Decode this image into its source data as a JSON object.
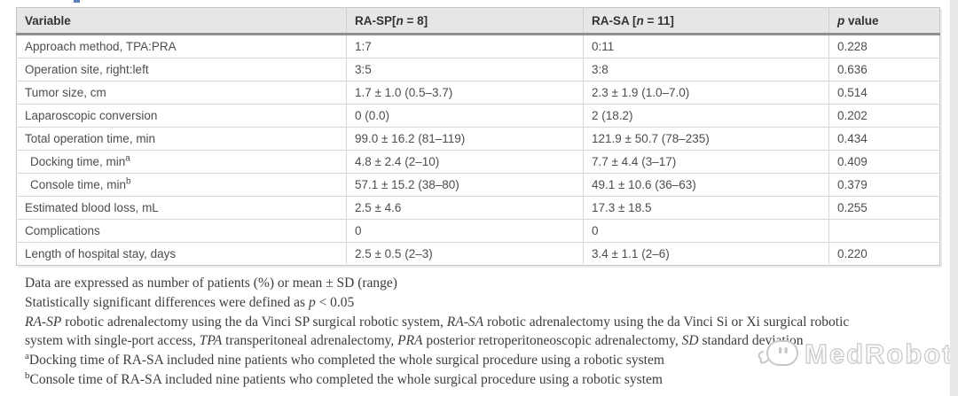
{
  "page": {
    "watermark_label": "MedRobot"
  },
  "table": {
    "header": [
      [
        {
          "t": "Variable"
        }
      ],
      [
        {
          "t": "RA-SP["
        },
        {
          "t": "n",
          "i": true
        },
        {
          "t": " = 8]"
        }
      ],
      [
        {
          "t": "RA-SA ["
        },
        {
          "t": "n",
          "i": true
        },
        {
          "t": " = 11]"
        }
      ],
      [
        {
          "t": "p",
          "i": true
        },
        {
          "t": " value"
        }
      ]
    ],
    "rows": [
      {
        "label": [
          {
            "t": "Approach method, TPA:PRA"
          }
        ],
        "indent": false,
        "ra_sp": "1:7",
        "ra_sa": "0:11",
        "p": "0.228"
      },
      {
        "label": [
          {
            "t": "Operation site, right:left"
          }
        ],
        "indent": false,
        "ra_sp": "3:5",
        "ra_sa": "3:8",
        "p": "0.636"
      },
      {
        "label": [
          {
            "t": "Tumor size, cm"
          }
        ],
        "indent": false,
        "ra_sp": "1.7 ± 1.0 (0.5–3.7)",
        "ra_sa": "2.3 ± 1.9 (1.0–7.0)",
        "p": "0.514"
      },
      {
        "label": [
          {
            "t": "Laparoscopic conversion"
          }
        ],
        "indent": false,
        "ra_sp": "0 (0.0)",
        "ra_sa": "2 (18.2)",
        "p": "0.202"
      },
      {
        "label": [
          {
            "t": "Total operation time, min"
          }
        ],
        "indent": false,
        "ra_sp": "99.0 ± 16.2 (81–119)",
        "ra_sa": "121.9 ± 50.7 (78–235)",
        "p": "0.434"
      },
      {
        "label": [
          {
            "t": "Docking time, min"
          },
          {
            "t": "a",
            "sup": true
          }
        ],
        "indent": true,
        "ra_sp": "4.8 ± 2.4 (2–10)",
        "ra_sa": "7.7 ± 4.4 (3–17)",
        "p": "0.409"
      },
      {
        "label": [
          {
            "t": "Console time, min"
          },
          {
            "t": "b",
            "sup": true
          }
        ],
        "indent": true,
        "ra_sp": "57.1 ± 15.2 (38–80)",
        "ra_sa": "49.1 ± 10.6 (36–63)",
        "p": "0.379"
      },
      {
        "label": [
          {
            "t": "Estimated blood loss, mL"
          }
        ],
        "indent": false,
        "ra_sp": "2.5 ± 4.6",
        "ra_sa": "17.3 ± 18.5",
        "p": "0.255"
      },
      {
        "label": [
          {
            "t": "Complications"
          }
        ],
        "indent": false,
        "ra_sp": "0",
        "ra_sa": "0",
        "p": ""
      },
      {
        "label": [
          {
            "t": "Length of hospital stay, days"
          }
        ],
        "indent": false,
        "ra_sp": "2.5 ± 0.5 (2–3)",
        "ra_sa": "3.4 ± 1.1 (2–6)",
        "p": "0.220"
      }
    ]
  },
  "footnotes": [
    [
      {
        "t": "Data are expressed as number of patients (%) or mean ± SD (range)"
      }
    ],
    [
      {
        "t": "Statistically significant differences were defined as "
      },
      {
        "t": "p",
        "i": true
      },
      {
        "t": " < 0.05"
      }
    ],
    [
      {
        "t": "RA-SP",
        "i": true
      },
      {
        "t": " robotic adrenalectomy using the da Vinci SP surgical robotic system, "
      },
      {
        "t": "RA-SA",
        "i": true
      },
      {
        "t": " robotic adrenalectomy using the da Vinci Si or Xi surgical robotic"
      }
    ],
    [
      {
        "t": "system with single-port access, "
      },
      {
        "t": "TPA",
        "i": true
      },
      {
        "t": " transperitoneal adrenalectomy, "
      },
      {
        "t": "PRA",
        "i": true
      },
      {
        "t": " posterior retroperitoneoscopic adrenalectomy, "
      },
      {
        "t": "SD",
        "i": true
      },
      {
        "t": " standard deviation"
      }
    ],
    [
      {
        "t": "a",
        "sup": true
      },
      {
        "t": "Docking time of RA-SA included nine patients who completed the whole surgical procedure using a robotic system"
      }
    ],
    [
      {
        "t": "b",
        "sup": true
      },
      {
        "t": "Console time of RA-SA included nine patients who completed the whole surgical procedure using a robotic system"
      }
    ]
  ]
}
